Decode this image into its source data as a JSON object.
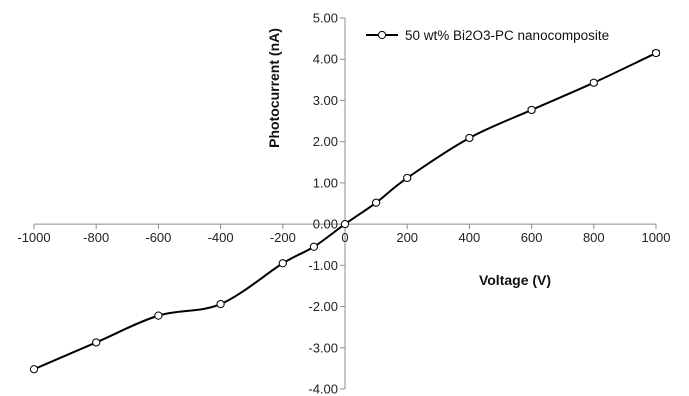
{
  "chart_data": {
    "type": "line",
    "xlabel": "Voltage (V)",
    "ylabel": "Photocurrent (nA)",
    "xlim": [
      -1000,
      1000
    ],
    "ylim": [
      -4,
      5
    ],
    "x_ticks": [
      "-1000",
      "-800",
      "-600",
      "-400",
      "-200",
      "0",
      "200",
      "400",
      "600",
      "800",
      "1000"
    ],
    "y_ticks": [
      "-4.00",
      "-3.00",
      "-2.00",
      "-1.00",
      "0.00",
      "1.00",
      "2.00",
      "3.00",
      "4.00",
      "5.00"
    ],
    "legend_position": "top-right",
    "grid": false,
    "series": [
      {
        "name": "50 wt% Bi2O3-PC nanocomposite",
        "color": "#000000",
        "x": [
          -1000,
          -800,
          -600,
          -400,
          -200,
          -100,
          0,
          100,
          200,
          400,
          600,
          800,
          1000
        ],
        "y": [
          -3.52,
          -2.87,
          -2.22,
          -1.94,
          -0.95,
          -0.55,
          0.0,
          0.52,
          1.12,
          2.09,
          2.77,
          3.43,
          4.15
        ],
        "error": [
          0.02,
          0.02,
          0.02,
          0.02,
          0.02,
          0.02,
          0.0,
          0.02,
          0.02,
          0.02,
          0.05,
          0.05,
          0.06
        ]
      }
    ]
  }
}
